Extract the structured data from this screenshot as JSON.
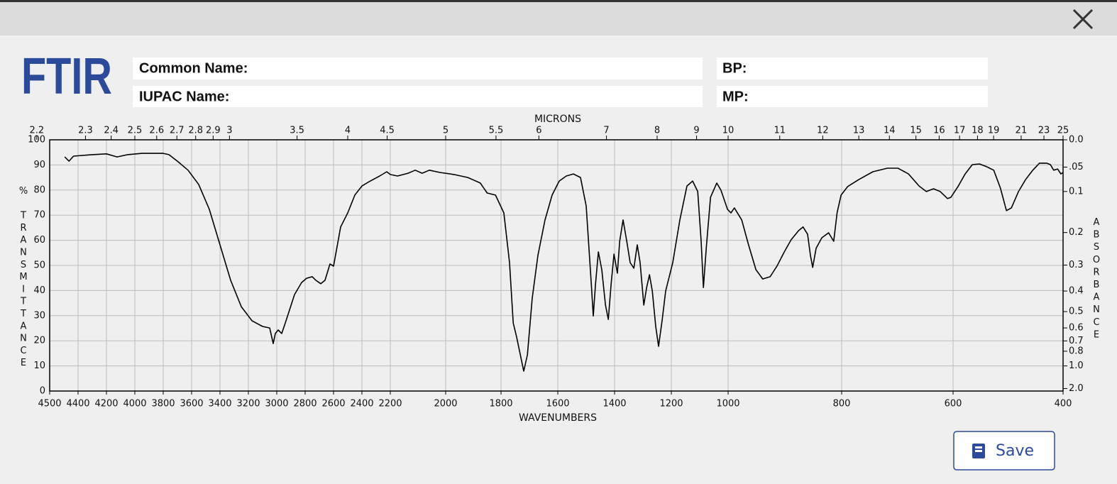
{
  "header": {
    "logo": "FTIR"
  },
  "fields": [
    {
      "label": "Common Name:"
    },
    {
      "label": "IUPAC Name:"
    },
    {
      "label": "BP:"
    },
    {
      "label": "MP:"
    }
  ],
  "save_button": {
    "label": "Save"
  },
  "chart_data": {
    "type": "line",
    "x_label": "WAVENUMBERS",
    "x2_label": "MICRONS",
    "y_label": "% TRANSMITTANCE",
    "y2_label": "ABSORBANCE",
    "color": "#000000",
    "grid": true,
    "xlim": [
      4500,
      400
    ],
    "xticks": [
      4500,
      4400,
      4200,
      4000,
      3800,
      3600,
      3400,
      3200,
      3000,
      2800,
      2600,
      2400,
      2200,
      2000,
      1800,
      1600,
      1400,
      1200,
      1000,
      800,
      600,
      400
    ],
    "x2ticks": [
      2.2,
      2.3,
      2.4,
      2.5,
      2.6,
      2.7,
      2.8,
      2.9,
      3,
      3.5,
      4,
      4.5,
      5,
      5.5,
      6,
      7,
      8,
      9,
      10,
      11,
      12,
      13,
      14,
      15,
      16,
      17,
      18,
      19,
      21,
      23,
      25
    ],
    "ylim": [
      0,
      100
    ],
    "yticks": [
      0,
      10,
      20,
      30,
      40,
      50,
      60,
      70,
      80,
      90,
      100
    ],
    "y2ticks": [
      {
        "value": 0,
        "label": "0.0"
      },
      {
        "value": 0.05,
        "label": ".05"
      },
      0.1,
      0.2,
      0.3,
      0.4,
      0.5,
      0.6,
      0.7,
      0.8,
      {
        "value": 1,
        "label": "1.0"
      },
      {
        "value": 2,
        "label": "2.0"
      }
    ],
    "x": [
      4447,
      4432,
      4416,
      4300,
      4200,
      4125,
      4050,
      3950,
      3800,
      3760,
      3700,
      3625,
      3550,
      3475,
      3400,
      3325,
      3250,
      3175,
      3100,
      3050,
      3025,
      3010,
      2990,
      2965,
      2940,
      2915,
      2875,
      2825,
      2790,
      2750,
      2725,
      2690,
      2660,
      2625,
      2600,
      2550,
      2500,
      2450,
      2400,
      2350,
      2275,
      2225,
      2200,
      2174,
      2136,
      2110,
      2085,
      2059,
      2021,
      1970,
      1920,
      1875,
      1850,
      1820,
      1790,
      1770,
      1757,
      1745,
      1720,
      1707,
      1690,
      1670,
      1645,
      1620,
      1595,
      1570,
      1545,
      1520,
      1500,
      1482,
      1475,
      1467,
      1457,
      1445,
      1432,
      1422,
      1412,
      1402,
      1390,
      1382,
      1370,
      1357,
      1345,
      1332,
      1320,
      1310,
      1297,
      1287,
      1277,
      1267,
      1255,
      1245,
      1232,
      1220,
      1195,
      1170,
      1145,
      1125,
      1107,
      1095,
      1087,
      1077,
      1062,
      1040,
      1025,
      1002,
      995,
      989,
      976,
      964,
      951,
      939,
      926,
      914,
      901,
      889,
      876,
      868,
      860,
      855,
      851,
      845,
      835,
      823,
      814,
      808,
      801,
      789,
      769,
      744,
      718,
      699,
      680,
      661,
      648,
      635,
      623,
      610,
      604,
      591,
      578,
      565,
      552,
      539,
      526,
      514,
      503,
      494,
      481,
      468,
      455,
      443,
      430,
      423,
      417,
      410,
      404,
      400
    ],
    "values": [
      93.2,
      91.5,
      93.5,
      94.1,
      94.4,
      93.2,
      94.1,
      94.6,
      94.6,
      94.1,
      91.5,
      87.9,
      82.2,
      72.3,
      58.2,
      44.1,
      33.6,
      28.0,
      25.7,
      25.1,
      18.9,
      22.9,
      24.3,
      22.9,
      27.1,
      31.4,
      38.4,
      43.2,
      44.9,
      45.5,
      44.1,
      42.7,
      44.1,
      50.6,
      49.7,
      65.3,
      70.9,
      78.0,
      81.6,
      83.3,
      85.6,
      87.3,
      86.2,
      85.6,
      86.7,
      87.9,
      86.7,
      87.9,
      87.0,
      86.2,
      85.0,
      82.8,
      78.8,
      78.0,
      70.9,
      51.1,
      27.1,
      21.5,
      7.9,
      14.4,
      37.0,
      54.0,
      68.1,
      78.0,
      83.6,
      85.6,
      86.4,
      85.0,
      73.7,
      42.7,
      29.9,
      42.7,
      55.4,
      48.3,
      34.2,
      28.5,
      42.7,
      54.5,
      46.9,
      59.6,
      68.1,
      59.6,
      51.1,
      48.9,
      58.2,
      51.1,
      34.2,
      41.2,
      46.3,
      39.8,
      25.7,
      17.8,
      28.5,
      39.8,
      51.1,
      68.1,
      81.6,
      83.6,
      79.4,
      59.6,
      41.2,
      56.8,
      77.1,
      82.8,
      79.9,
      72.3,
      70.9,
      72.9,
      68.1,
      58.2,
      48.3,
      44.6,
      45.5,
      49.7,
      55.4,
      60.2,
      63.8,
      65.3,
      62.4,
      54.0,
      49.2,
      56.8,
      61.0,
      63.0,
      59.6,
      71.0,
      78.0,
      81.4,
      84.2,
      87.3,
      88.7,
      88.7,
      86.4,
      81.6,
      79.4,
      80.5,
      79.4,
      76.6,
      77.1,
      81.4,
      86.4,
      90.1,
      90.4,
      89.3,
      87.9,
      80.8,
      71.8,
      72.9,
      79.4,
      84.2,
      87.9,
      90.7,
      90.7,
      90.1,
      87.9,
      88.4,
      86.4,
      87.0
    ]
  }
}
